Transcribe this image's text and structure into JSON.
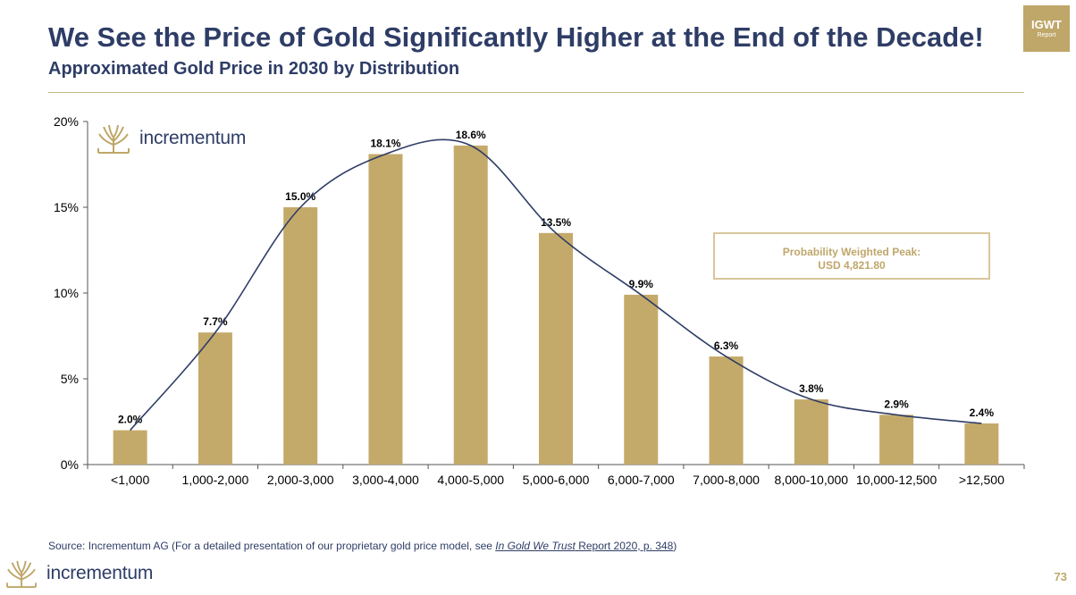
{
  "header": {
    "title": "We See the Price of Gold Significantly Higher at the End of the Decade!",
    "subtitle": "Approximated Gold Price in 2030 by Distribution"
  },
  "badge": {
    "title": "IGWT",
    "subtitle": "Report"
  },
  "logo": {
    "text": "incrementum"
  },
  "peak_box": {
    "line1": "Probability Weighted Peak:",
    "line2": "USD 4,821.80"
  },
  "source": {
    "prefix": "Source: Incrementum AG (For a detailed presentation of our proprietary gold price model, see ",
    "link_italic": "In Gold We Trust",
    "link_rest": " Report 2020, p. 348",
    "suffix": ")"
  },
  "page_number": "73",
  "colors": {
    "bar": "#c4aa6a",
    "line": "#2e3d66",
    "title": "#2e3d66",
    "accent": "#bfa76a"
  },
  "chart_data": {
    "type": "bar",
    "title": "Approximated Gold Price in 2030 by Distribution",
    "categories": [
      "<1,000",
      "1,000-2,000",
      "2,000-3,000",
      "3,000-4,000",
      "4,000-5,000",
      "5,000-6,000",
      "6,000-7,000",
      "7,000-8,000",
      "8,000-10,000",
      "10,000-12,500",
      ">12,500"
    ],
    "values": [
      2.0,
      7.7,
      15.0,
      18.1,
      18.6,
      13.5,
      9.9,
      6.3,
      3.8,
      2.9,
      2.4
    ],
    "data_labels": [
      "2.0%",
      "7.7%",
      "15.0%",
      "18.1%",
      "18.6%",
      "13.5%",
      "9.9%",
      "6.3%",
      "3.8%",
      "2.9%",
      "2.4%"
    ],
    "ylim": [
      0,
      20
    ],
    "yticks": [
      0,
      5,
      10,
      15,
      20
    ],
    "ytick_labels": [
      "0%",
      "5%",
      "10%",
      "15%",
      "20%"
    ],
    "overlay": "smoothed distribution curve",
    "grid": false
  }
}
